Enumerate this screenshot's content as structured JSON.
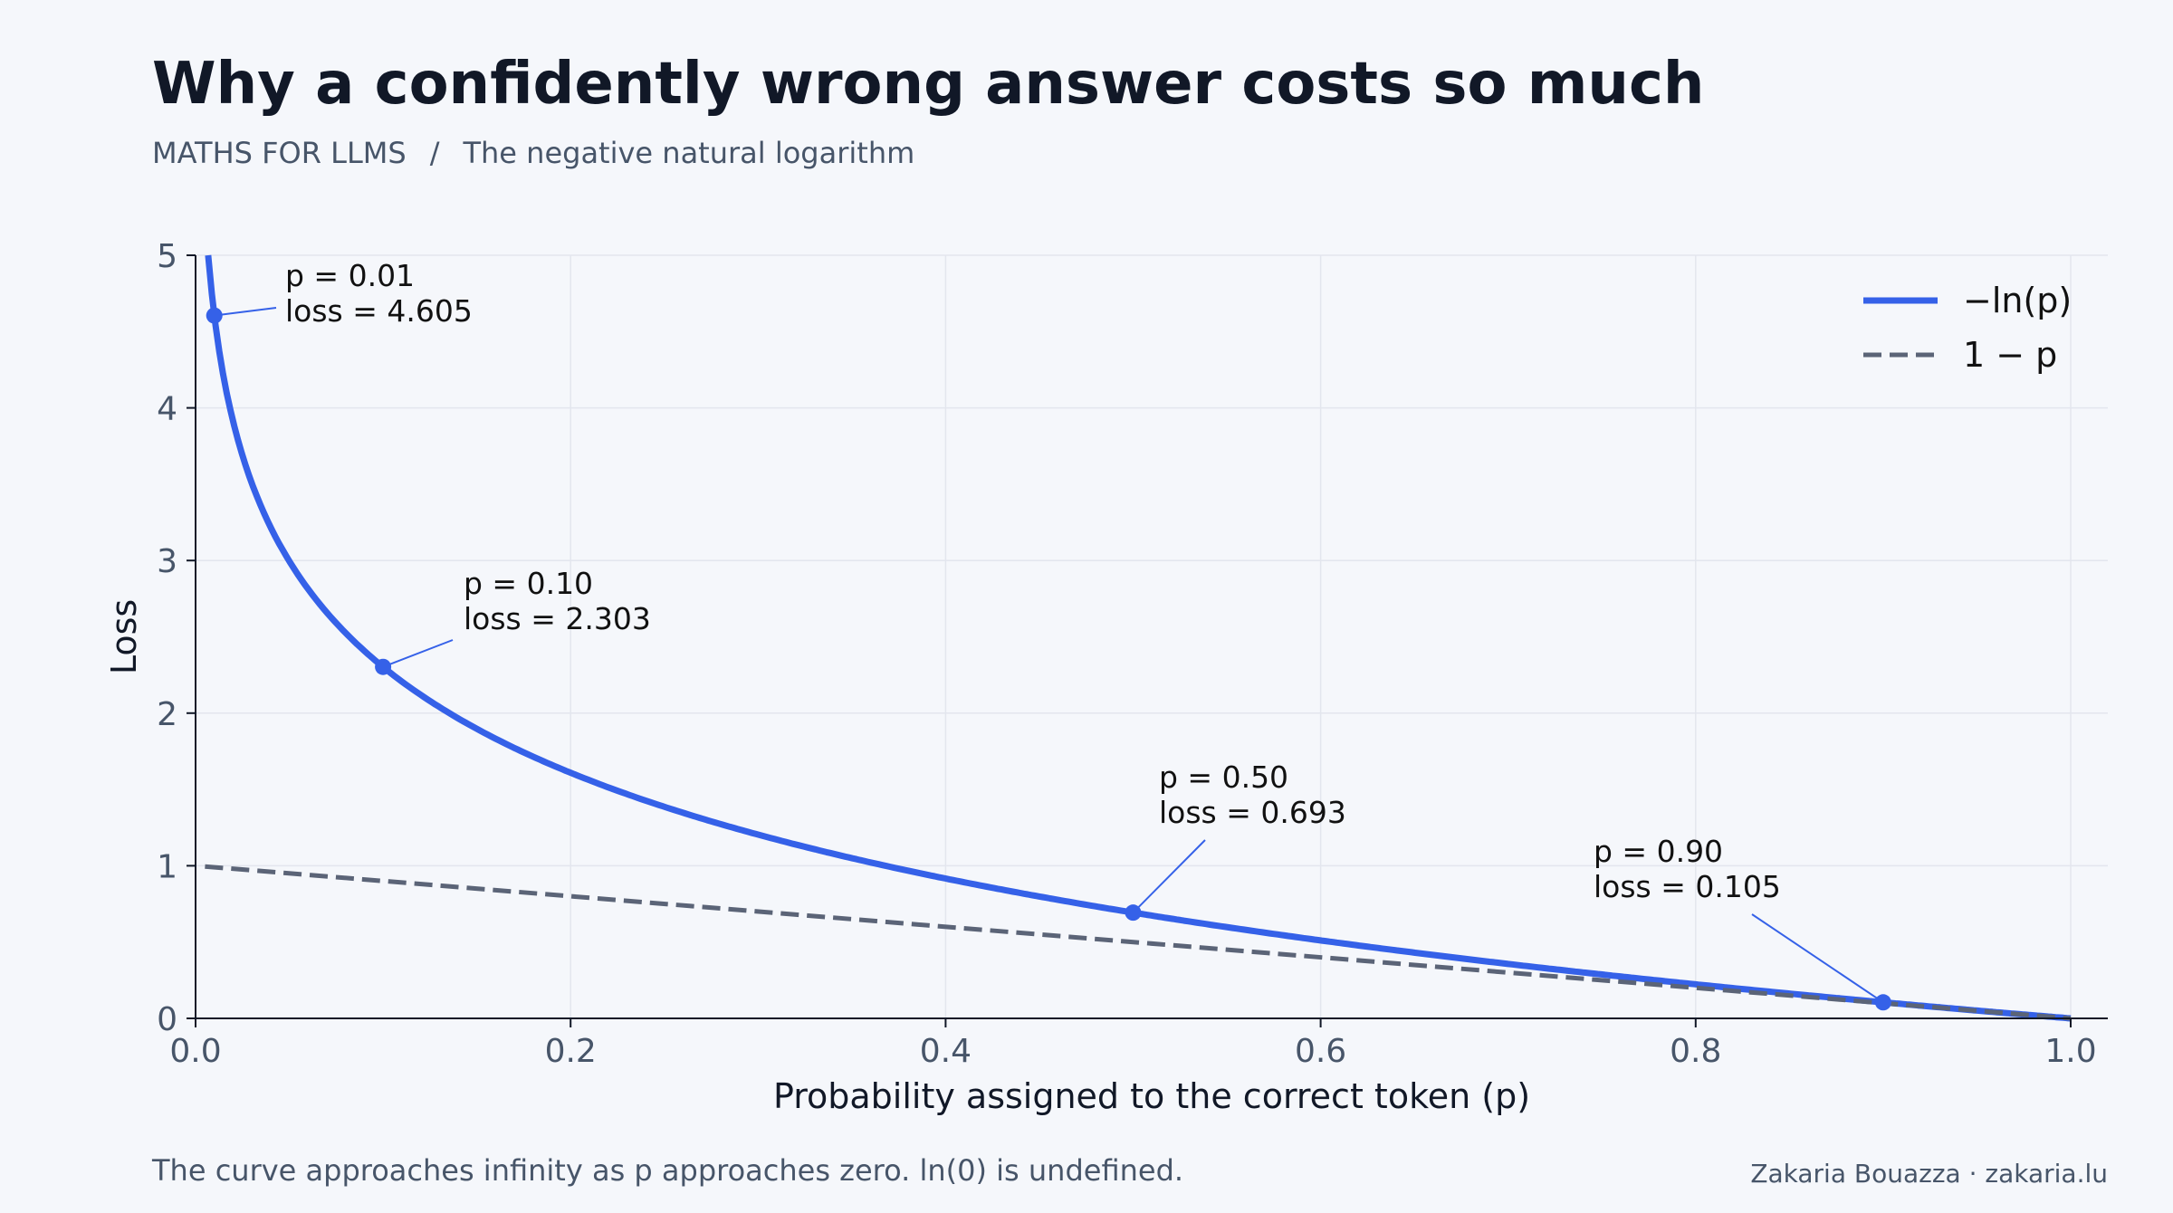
{
  "header": {
    "title": "Why a confidently wrong answer costs so much",
    "breadcrumb_section": "MATHS FOR LLMS",
    "breadcrumb_separator": "/",
    "breadcrumb_topic": "The negative natural logarithm"
  },
  "footer": {
    "note": "The curve approaches infinity as p approaches zero. ln(0) is undefined.",
    "credit": "Zakaria Bouazza · zakaria.lu"
  },
  "colors": {
    "background": "#f5f7fb",
    "curve": "#3561e8",
    "reference_line": "#5b6477",
    "grid": "#e3e6ee",
    "axis": "#111827",
    "tick_text": "#475569"
  },
  "chart_data": {
    "type": "line",
    "title": "",
    "xlabel": "Probability assigned to the correct token (p)",
    "ylabel": "Loss",
    "xlim": [
      0,
      1
    ],
    "ylim": [
      0,
      5
    ],
    "x_ticks": [
      0.0,
      0.2,
      0.4,
      0.6,
      0.8,
      1.0
    ],
    "x_tick_labels": [
      "0.0",
      "0.2",
      "0.4",
      "0.6",
      "0.8",
      "1.0"
    ],
    "y_ticks": [
      0,
      1,
      2,
      3,
      4,
      5
    ],
    "y_tick_labels": [
      "0",
      "1",
      "2",
      "3",
      "4",
      "5"
    ],
    "grid": true,
    "legend_position": "top-right",
    "series": [
      {
        "name": "−ln(p)",
        "function": "-ln(p)",
        "style": "solid",
        "color": "#3561e8"
      },
      {
        "name": "1 − p",
        "function": "1 - p",
        "style": "dashed",
        "color": "#5b6477"
      }
    ],
    "annotations": [
      {
        "p": 0.01,
        "loss": 4.605,
        "label_line1": "p = 0.01",
        "label_line2": "loss = 4.605"
      },
      {
        "p": 0.1,
        "loss": 2.303,
        "label_line1": "p = 0.10",
        "label_line2": "loss = 2.303"
      },
      {
        "p": 0.5,
        "loss": 0.693,
        "label_line1": "p = 0.50",
        "label_line2": "loss = 0.693"
      },
      {
        "p": 0.9,
        "loss": 0.105,
        "label_line1": "p = 0.90",
        "label_line2": "loss = 0.105"
      }
    ]
  }
}
